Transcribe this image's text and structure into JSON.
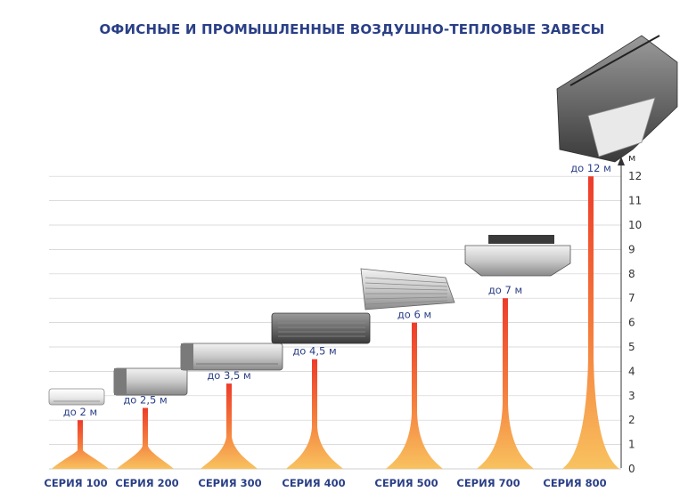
{
  "chart_data": {
    "type": "bar",
    "title": "ОФИСНЫЕ И ПРОМЫШЛЕННЫЕ ВОЗДУШНО-ТЕПЛОВЫЕ ЗАВЕСЫ",
    "xlabel": "",
    "ylabel": "м",
    "ylim": [
      0,
      12
    ],
    "yticks": [
      "0",
      "1",
      "2",
      "3",
      "4",
      "5",
      "6",
      "7",
      "8",
      "9",
      "10",
      "11",
      "12"
    ],
    "grid": true,
    "categories": [
      "СЕРИЯ 100",
      "СЕРИЯ 200",
      "СЕРИЯ 300",
      "СЕРИЯ 400",
      "СЕРИЯ 500",
      "СЕРИЯ 700",
      "СЕРИЯ 800"
    ],
    "values": [
      2,
      2.5,
      3.5,
      4.5,
      6,
      7,
      12
    ],
    "value_labels": [
      "до 2 м",
      "до 2,5 м",
      "до 3,5 м",
      "до 4,5 м",
      "до 6 м",
      "до 7 м",
      "до 12 м"
    ],
    "colors": {
      "jet_top": "#ef4a2e",
      "jet_mid": "#f69a4a",
      "jet_base": "#f7c46a",
      "text": "#2a3f86",
      "grid": "#c8c8c8"
    }
  }
}
